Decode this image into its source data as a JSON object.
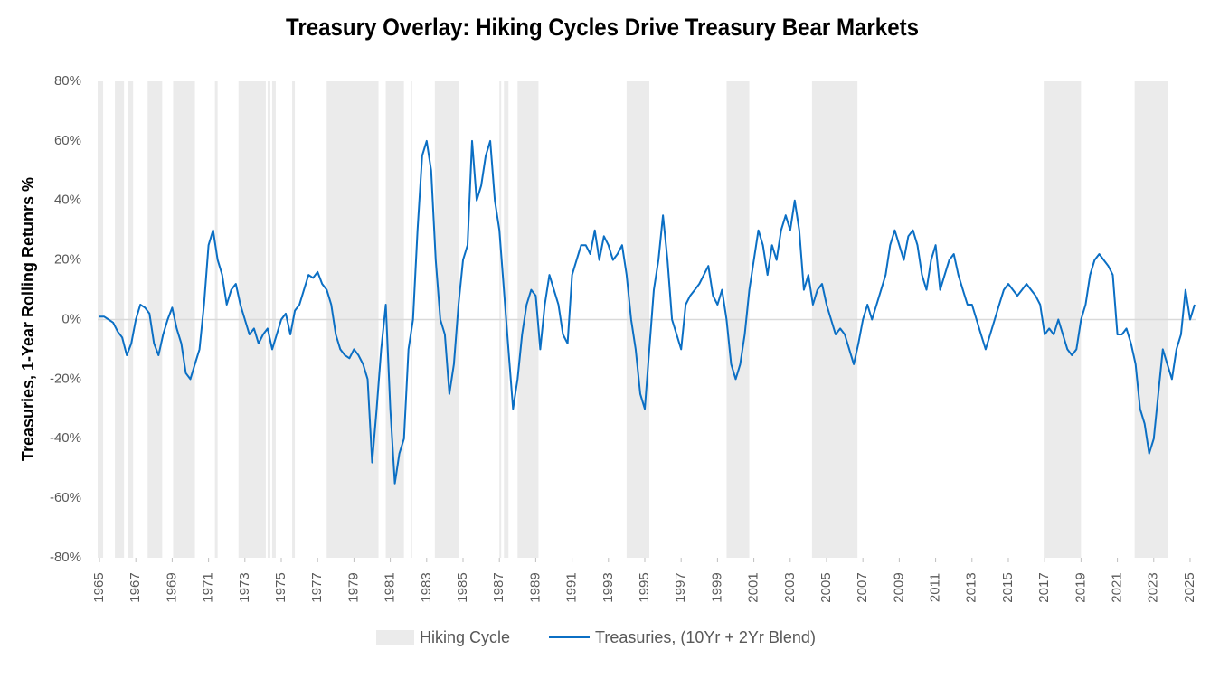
{
  "chart_data": {
    "type": "line",
    "title": "Treasury Overlay: Hiking Cycles Drive Treasury Bear Markets",
    "y_label": "Treasuries, 1-Year Rolling Retunrs %",
    "hiking_label": "Hiking Cycle",
    "hiking_color": "#ebebeb",
    "hiking_cycles": [
      [
        1964.9,
        1965.2
      ],
      [
        1965.85,
        1966.35
      ],
      [
        1966.55,
        1966.85
      ],
      [
        1967.65,
        1968.45
      ],
      [
        1969.05,
        1970.25
      ],
      [
        1971.35,
        1971.5
      ],
      [
        1972.65,
        1974.15
      ],
      [
        1974.25,
        1974.4
      ],
      [
        1974.5,
        1974.7
      ],
      [
        1975.6,
        1975.75
      ],
      [
        1977.5,
        1980.35
      ],
      [
        1980.75,
        1981.75
      ],
      [
        1982.15,
        1982.2
      ],
      [
        1983.45,
        1984.8
      ],
      [
        1987.0,
        1987.1
      ],
      [
        1987.25,
        1987.5
      ],
      [
        1988.0,
        1989.15
      ],
      [
        1994.0,
        1995.25
      ],
      [
        1999.5,
        2000.75
      ],
      [
        2004.2,
        2006.7
      ],
      [
        2016.95,
        2019.0
      ],
      [
        2021.95,
        2023.8
      ]
    ],
    "x": [
      1965,
      1965.25,
      1965.5,
      1965.75,
      1966,
      1966.25,
      1966.5,
      1966.75,
      1967,
      1967.25,
      1967.5,
      1967.75,
      1968,
      1968.25,
      1968.5,
      1968.75,
      1969,
      1969.25,
      1969.5,
      1969.75,
      1970,
      1970.25,
      1970.5,
      1970.75,
      1971,
      1971.25,
      1971.5,
      1971.75,
      1972,
      1972.25,
      1972.5,
      1972.75,
      1973,
      1973.25,
      1973.5,
      1973.75,
      1974,
      1974.25,
      1974.5,
      1974.75,
      1975,
      1975.25,
      1975.5,
      1975.75,
      1976,
      1976.25,
      1976.5,
      1976.75,
      1977,
      1977.25,
      1977.5,
      1977.75,
      1978,
      1978.25,
      1978.5,
      1978.75,
      1979,
      1979.25,
      1979.5,
      1979.75,
      1980,
      1980.25,
      1980.5,
      1980.75,
      1981,
      1981.25,
      1981.5,
      1981.75,
      1982,
      1982.25,
      1982.5,
      1982.75,
      1983,
      1983.25,
      1983.5,
      1983.75,
      1984,
      1984.25,
      1984.5,
      1984.75,
      1985,
      1985.25,
      1985.5,
      1985.75,
      1986,
      1986.25,
      1986.5,
      1986.75,
      1987,
      1987.25,
      1987.5,
      1987.75,
      1988,
      1988.25,
      1988.5,
      1988.75,
      1989,
      1989.25,
      1989.5,
      1989.75,
      1990,
      1990.25,
      1990.5,
      1990.75,
      1991,
      1991.25,
      1991.5,
      1991.75,
      1992,
      1992.25,
      1992.5,
      1992.75,
      1993,
      1993.25,
      1993.5,
      1993.75,
      1994,
      1994.25,
      1994.5,
      1994.75,
      1995,
      1995.25,
      1995.5,
      1995.75,
      1996,
      1996.25,
      1996.5,
      1996.75,
      1997,
      1997.25,
      1997.5,
      1997.75,
      1998,
      1998.25,
      1998.5,
      1998.75,
      1999,
      1999.25,
      1999.5,
      1999.75,
      2000,
      2000.25,
      2000.5,
      2000.75,
      2001,
      2001.25,
      2001.5,
      2001.75,
      2002,
      2002.25,
      2002.5,
      2002.75,
      2003,
      2003.25,
      2003.5,
      2003.75,
      2004,
      2004.25,
      2004.5,
      2004.75,
      2005,
      2005.25,
      2005.5,
      2005.75,
      2006,
      2006.25,
      2006.5,
      2006.75,
      2007,
      2007.25,
      2007.5,
      2007.75,
      2008,
      2008.25,
      2008.5,
      2008.75,
      2009,
      2009.25,
      2009.5,
      2009.75,
      2010,
      2010.25,
      2010.5,
      2010.75,
      2011,
      2011.25,
      2011.5,
      2011.75,
      2012,
      2012.25,
      2012.5,
      2012.75,
      2013,
      2013.25,
      2013.5,
      2013.75,
      2014,
      2014.25,
      2014.5,
      2014.75,
      2015,
      2015.25,
      2015.5,
      2015.75,
      2016,
      2016.25,
      2016.5,
      2016.75,
      2017,
      2017.25,
      2017.5,
      2017.75,
      2018,
      2018.25,
      2018.5,
      2018.75,
      2019,
      2019.25,
      2019.5,
      2019.75,
      2020,
      2020.25,
      2020.5,
      2020.75,
      2021,
      2021.25,
      2021.5,
      2021.75,
      2022,
      2022.25,
      2022.5,
      2022.75,
      2023,
      2023.25,
      2023.5,
      2023.75,
      2024,
      2024.25,
      2024.5,
      2024.75,
      2025,
      2025.25
    ],
    "series": [
      {
        "name": "Treasuries, (10Yr + 2Yr Blend)",
        "color": "#0b6fc4",
        "values": [
          1,
          1,
          0,
          -1,
          -4,
          -6,
          -12,
          -8,
          0,
          5,
          4,
          2,
          -8,
          -12,
          -5,
          0,
          4,
          -3,
          -8,
          -18,
          -20,
          -15,
          -10,
          5,
          25,
          30,
          20,
          15,
          5,
          10,
          12,
          5,
          0,
          -5,
          -3,
          -8,
          -5,
          -3,
          -10,
          -5,
          0,
          2,
          -5,
          3,
          5,
          10,
          15,
          14,
          16,
          12,
          10,
          5,
          -5,
          -10,
          -12,
          -13,
          -10,
          -12,
          -15,
          -20,
          -48,
          -30,
          -10,
          5,
          -30,
          -55,
          -45,
          -40,
          -10,
          0,
          30,
          55,
          60,
          50,
          20,
          0,
          -5,
          -25,
          -15,
          5,
          20,
          25,
          60,
          40,
          45,
          55,
          60,
          40,
          30,
          10,
          -10,
          -30,
          -20,
          -5,
          5,
          10,
          8,
          -10,
          5,
          15,
          10,
          5,
          -5,
          -8,
          15,
          20,
          25,
          25,
          22,
          30,
          20,
          28,
          25,
          20,
          22,
          25,
          15,
          0,
          -10,
          -25,
          -30,
          -10,
          10,
          20,
          35,
          20,
          0,
          -5,
          -10,
          5,
          8,
          10,
          12,
          15,
          18,
          8,
          5,
          10,
          0,
          -15,
          -20,
          -15,
          -5,
          10,
          20,
          30,
          25,
          15,
          25,
          20,
          30,
          35,
          30,
          40,
          30,
          10,
          15,
          5,
          10,
          12,
          5,
          0,
          -5,
          -3,
          -5,
          -10,
          -15,
          -8,
          0,
          5,
          0,
          5,
          10,
          15,
          25,
          30,
          25,
          20,
          28,
          30,
          25,
          15,
          10,
          20,
          25,
          10,
          15,
          20,
          22,
          15,
          10,
          5,
          5,
          0,
          -5,
          -10,
          -5,
          0,
          5,
          10,
          12,
          10,
          8,
          10,
          12,
          10,
          8,
          5,
          -5,
          -3,
          -5,
          0,
          -5,
          -10,
          -12,
          -10,
          0,
          5,
          15,
          20,
          22,
          20,
          18,
          15,
          -5,
          -5,
          -3,
          -8,
          -15,
          -30,
          -35,
          -45,
          -40,
          -25,
          -10,
          -15,
          -20,
          -10,
          -5,
          10,
          0,
          5
        ]
      }
    ],
    "xlim": [
      1964.9,
      2025.3
    ],
    "xticks": [
      1965,
      1967,
      1969,
      1971,
      1973,
      1975,
      1977,
      1979,
      1981,
      1983,
      1985,
      1987,
      1989,
      1991,
      1993,
      1995,
      1997,
      1999,
      2001,
      2003,
      2005,
      2007,
      2009,
      2011,
      2013,
      2015,
      2017,
      2019,
      2021,
      2023,
      2025
    ],
    "ylim": [
      -80,
      80
    ],
    "yticks": [
      {
        "value": -80,
        "label": "-80%"
      },
      {
        "value": -60,
        "label": "-60%"
      },
      {
        "value": -40,
        "label": "-40%"
      },
      {
        "value": -20,
        "label": "-20%"
      },
      {
        "value": 0,
        "label": "0%"
      },
      {
        "value": 20,
        "label": "20%"
      },
      {
        "value": 40,
        "label": "40%"
      },
      {
        "value": 60,
        "label": "60%"
      },
      {
        "value": 80,
        "label": "80%"
      }
    ]
  }
}
